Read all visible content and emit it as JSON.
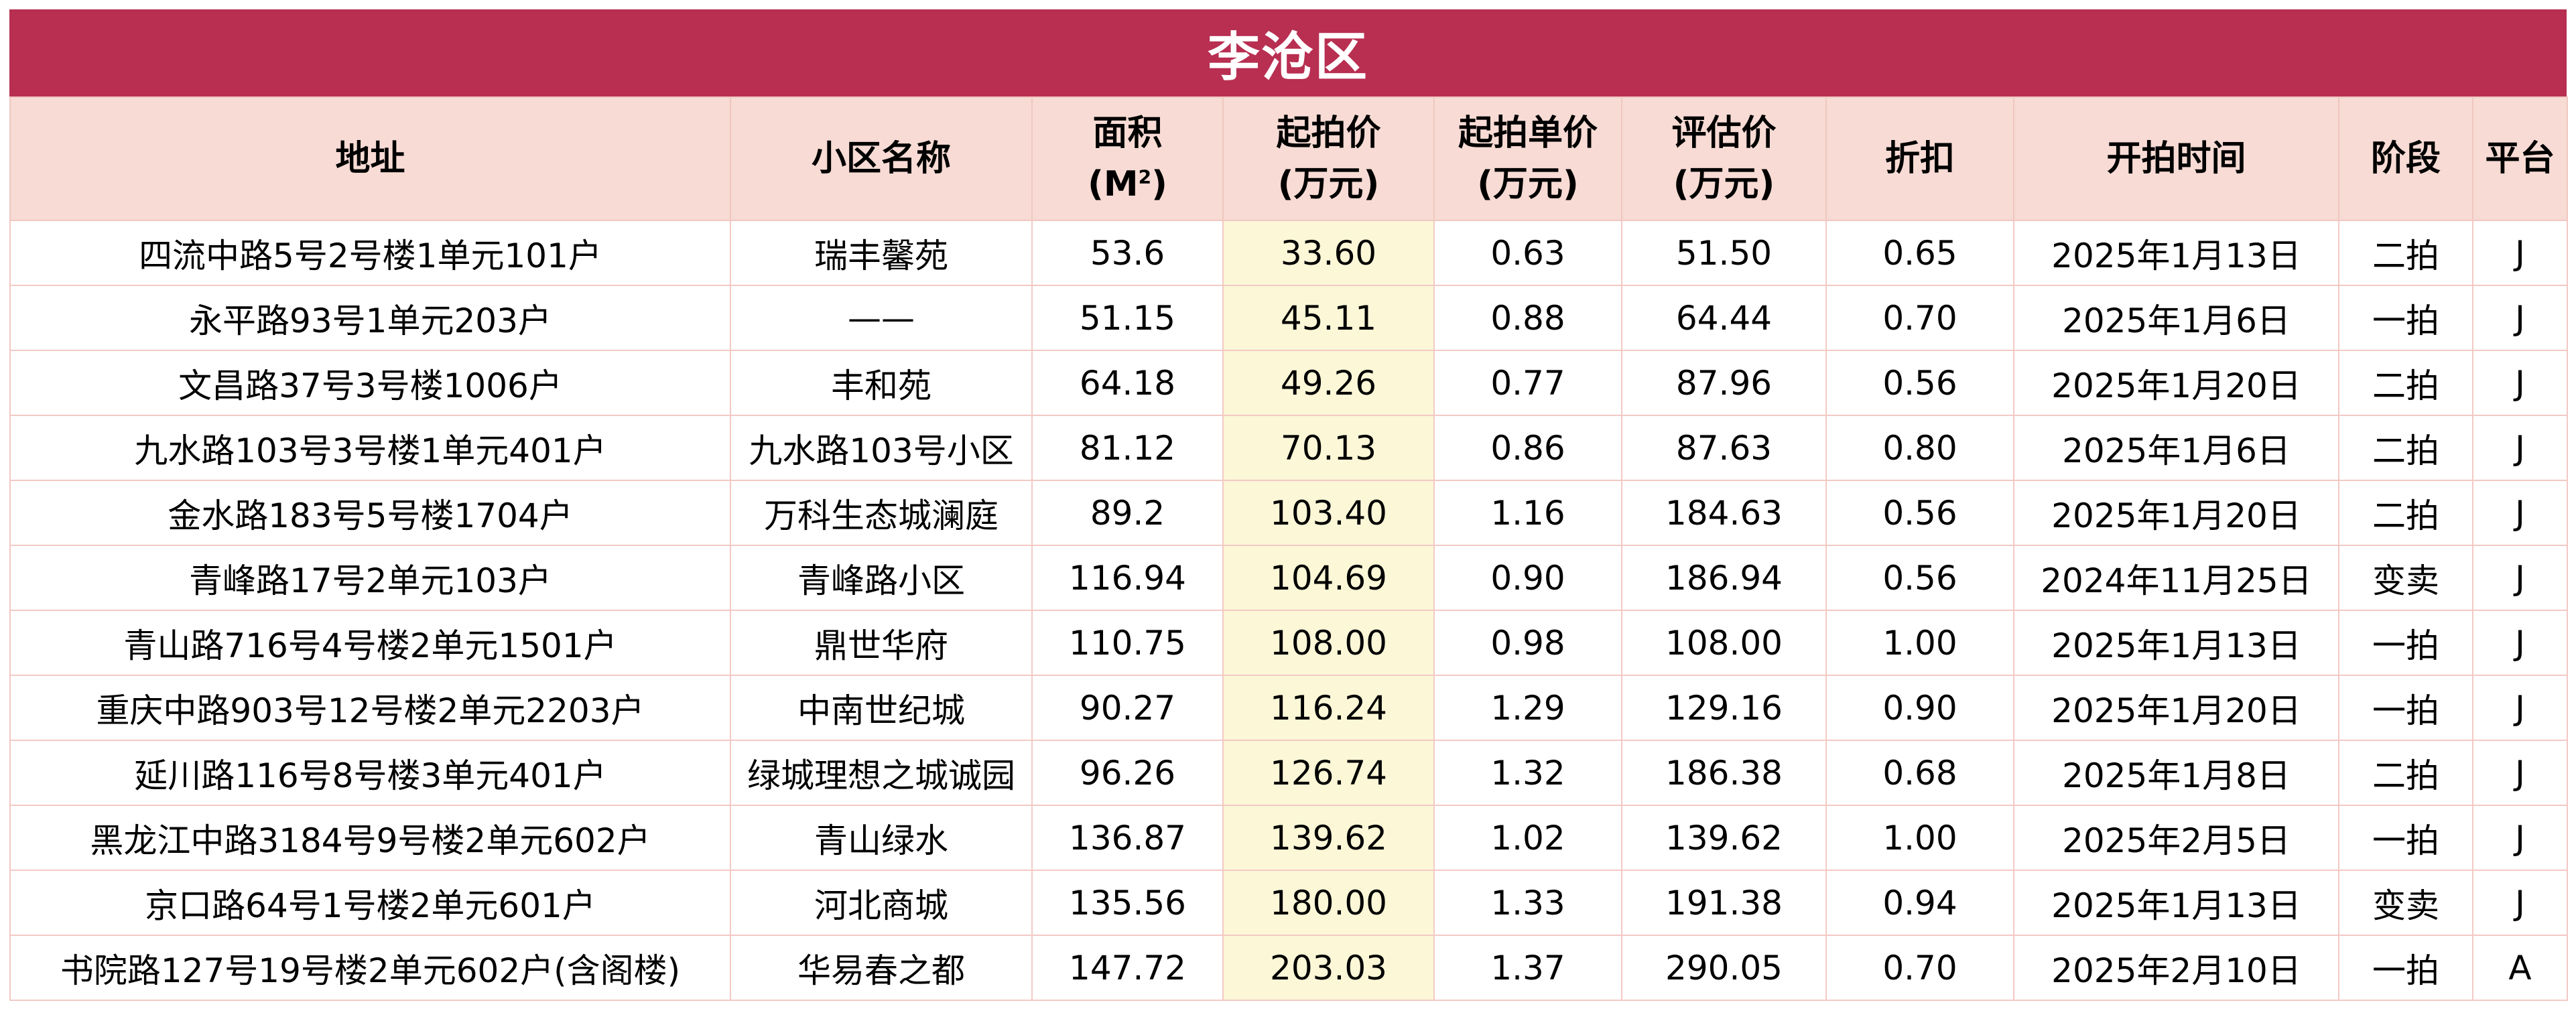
{
  "title": "李沧区",
  "headers": {
    "address": "地址",
    "community": "小区名称",
    "area_l1": "面积",
    "area_l2": "(M",
    "area_sup": "2",
    "area_l3": ")",
    "start_price_l1": "起拍价",
    "start_price_l2": "(万元)",
    "unit_price_l1": "起拍单价",
    "unit_price_l2": "(万元)",
    "appraisal_l1": "评估价",
    "appraisal_l2": "(万元)",
    "discount": "折扣",
    "auction_time": "开拍时间",
    "stage": "阶段",
    "platform": "平台"
  },
  "rows": [
    {
      "address": "四流中路5号2号楼1单元101户",
      "community": "瑞丰馨苑",
      "area": "53.6",
      "start_price": "33.60",
      "unit_price": "0.63",
      "appraisal": "51.50",
      "discount": "0.65",
      "time": "2025年1月13日",
      "stage": "二拍",
      "platform": "J"
    },
    {
      "address": "永平路93号1单元203户",
      "community": "——",
      "area": "51.15",
      "start_price": "45.11",
      "unit_price": "0.88",
      "appraisal": "64.44",
      "discount": "0.70",
      "time": "2025年1月6日",
      "stage": "一拍",
      "platform": "J"
    },
    {
      "address": "文昌路37号3号楼1006户",
      "community": "丰和苑",
      "area": "64.18",
      "start_price": "49.26",
      "unit_price": "0.77",
      "appraisal": "87.96",
      "discount": "0.56",
      "time": "2025年1月20日",
      "stage": "二拍",
      "platform": "J"
    },
    {
      "address": "九水路103号3号楼1单元401户",
      "community": "九水路103号小区",
      "area": "81.12",
      "start_price": "70.13",
      "unit_price": "0.86",
      "appraisal": "87.63",
      "discount": "0.80",
      "time": "2025年1月6日",
      "stage": "二拍",
      "platform": "J"
    },
    {
      "address": "金水路183号5号楼1704户",
      "community": "万科生态城澜庭",
      "area": "89.2",
      "start_price": "103.40",
      "unit_price": "1.16",
      "appraisal": "184.63",
      "discount": "0.56",
      "time": "2025年1月20日",
      "stage": "二拍",
      "platform": "J"
    },
    {
      "address": "青峰路17号2单元103户",
      "community": "青峰路小区",
      "area": "116.94",
      "start_price": "104.69",
      "unit_price": "0.90",
      "appraisal": "186.94",
      "discount": "0.56",
      "time": "2024年11月25日",
      "stage": "变卖",
      "platform": "J"
    },
    {
      "address": "青山路716号4号楼2单元1501户",
      "community": "鼎世华府",
      "area": "110.75",
      "start_price": "108.00",
      "unit_price": "0.98",
      "appraisal": "108.00",
      "discount": "1.00",
      "time": "2025年1月13日",
      "stage": "一拍",
      "platform": "J"
    },
    {
      "address": "重庆中路903号12号楼2单元2203户",
      "community": "中南世纪城",
      "area": "90.27",
      "start_price": "116.24",
      "unit_price": "1.29",
      "appraisal": "129.16",
      "discount": "0.90",
      "time": "2025年1月20日",
      "stage": "一拍",
      "platform": "J"
    },
    {
      "address": "延川路116号8号楼3单元401户",
      "community": "绿城理想之城诚园",
      "area": "96.26",
      "start_price": "126.74",
      "unit_price": "1.32",
      "appraisal": "186.38",
      "discount": "0.68",
      "time": "2025年1月8日",
      "stage": "二拍",
      "platform": "J"
    },
    {
      "address": "黑龙江中路3184号9号楼2单元602户",
      "community": "青山绿水",
      "area": "136.87",
      "start_price": "139.62",
      "unit_price": "1.02",
      "appraisal": "139.62",
      "discount": "1.00",
      "time": "2025年2月5日",
      "stage": "一拍",
      "platform": "J"
    },
    {
      "address": "京口路64号1号楼2单元601户",
      "community": "河北商城",
      "area": "135.56",
      "start_price": "180.00",
      "unit_price": "1.33",
      "appraisal": "191.38",
      "discount": "0.94",
      "time": "2025年1月13日",
      "stage": "变卖",
      "platform": "J"
    },
    {
      "address": "书院路127号19号楼2单元602户(含阁楼)",
      "community": "华易春之都",
      "area": "147.72",
      "start_price": "203.03",
      "unit_price": "1.37",
      "appraisal": "290.05",
      "discount": "0.70",
      "time": "2025年2月10日",
      "stage": "一拍",
      "platform": "A"
    }
  ],
  "colors": {
    "title_bg": "#b82f52",
    "header_bg": "#f7dbd4",
    "highlight_col_bg": "#fbf7d7",
    "grid": "#f3c9c4"
  }
}
